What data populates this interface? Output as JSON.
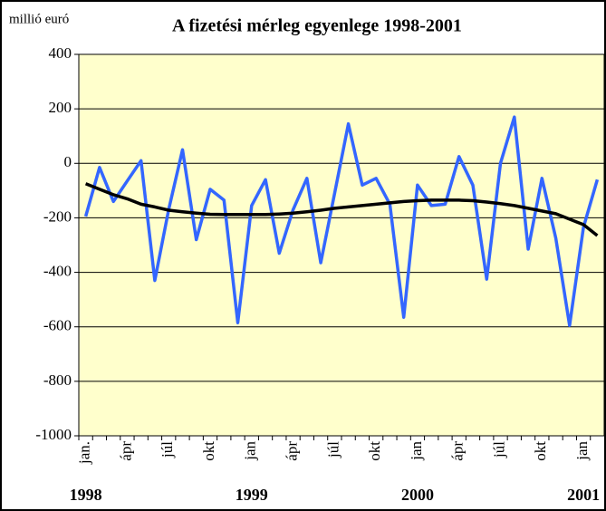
{
  "chart_data": {
    "type": "line",
    "title": "A fizetési mérleg egyenlege 1998-2001",
    "y_label": "millió euró",
    "categories": [
      "jan.",
      null,
      null,
      "ápr",
      null,
      null,
      "júl",
      null,
      null,
      "okt",
      null,
      null,
      "jan",
      null,
      null,
      "ápr",
      null,
      null,
      "júl",
      null,
      null,
      "okt",
      null,
      null,
      "jan",
      null,
      null,
      "ápr",
      null,
      null,
      "júl",
      null,
      null,
      "okt",
      null,
      null,
      "jan",
      null
    ],
    "year_groups": [
      {
        "label": "1998",
        "index": 0
      },
      {
        "label": "1999",
        "index": 12
      },
      {
        "label": "2000",
        "index": 24
      },
      {
        "label": "2001",
        "index": 36
      }
    ],
    "series": [
      {
        "color": "#3366ff",
        "values": [
          -195,
          -15,
          -140,
          -65,
          10,
          -430,
          -170,
          50,
          -280,
          -95,
          -135,
          -585,
          -155,
          -60,
          -330,
          -170,
          -55,
          -365,
          -110,
          145,
          -80,
          -55,
          -150,
          -565,
          -80,
          -155,
          -150,
          25,
          -80,
          -425,
          0,
          170,
          -315,
          -55,
          -275,
          -595,
          -235,
          -60
        ]
      },
      {
        "color": "#000000",
        "values": [
          -75,
          -95,
          -115,
          -130,
          -150,
          -160,
          -172,
          -178,
          -183,
          -187,
          -188,
          -188,
          -188,
          -188,
          -186,
          -183,
          -178,
          -172,
          -165,
          -160,
          -155,
          -150,
          -145,
          -140,
          -137,
          -135,
          -135,
          -135,
          -137,
          -142,
          -148,
          -155,
          -165,
          -175,
          -185,
          -205,
          -225,
          -265
        ]
      }
    ],
    "ylim": [
      -1000,
      400
    ],
    "yticks": [
      -1000,
      -800,
      -600,
      -400,
      -200,
      0,
      200,
      400
    ],
    "grid": true,
    "plot_background": "#ffffcc"
  }
}
